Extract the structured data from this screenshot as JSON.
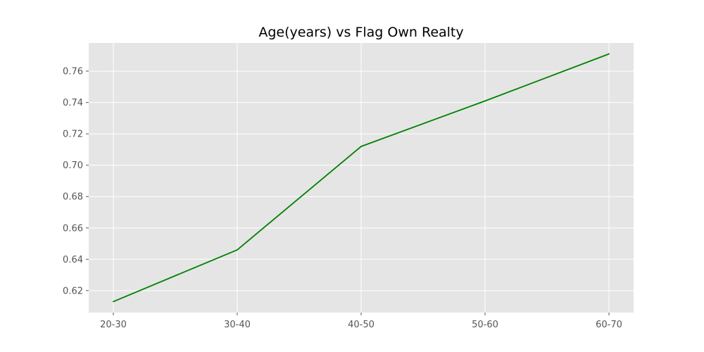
{
  "chart_data": {
    "type": "line",
    "title": "Age(years) vs Flag Own Realty",
    "xlabel": "",
    "ylabel": "",
    "categories": [
      "20-30",
      "30-40",
      "40-50",
      "50-60",
      "60-70"
    ],
    "series": [
      {
        "values": [
          0.613,
          0.646,
          0.712,
          0.741,
          0.771
        ]
      }
    ],
    "ylim": [
      0.606,
      0.778
    ],
    "yticks": [
      0.62,
      0.64,
      0.66,
      0.68,
      0.7,
      0.72,
      0.74,
      0.76
    ],
    "ytick_labels": [
      "0.62",
      "0.64",
      "0.66",
      "0.68",
      "0.70",
      "0.72",
      "0.74",
      "0.76"
    ],
    "grid": true,
    "colors": {
      "line": "#008000",
      "plot_background": "#e5e5e5",
      "grid": "#ffffff"
    }
  }
}
